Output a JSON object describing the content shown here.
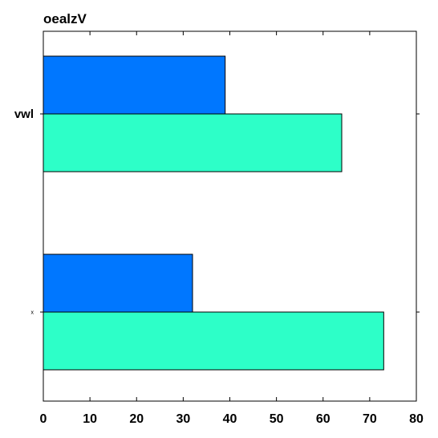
{
  "chart_data": {
    "type": "bar",
    "orientation": "horizontal",
    "title": "oealzV",
    "xlabel": "",
    "ylabel": "",
    "xlim": [
      0,
      80
    ],
    "xticks": [
      0,
      10,
      20,
      30,
      40,
      50,
      60,
      70,
      80
    ],
    "categories": [
      "vwl",
      "x"
    ],
    "series": [
      {
        "values": [
          39,
          32
        ],
        "color": "#0077ff"
      },
      {
        "values": [
          64,
          73
        ],
        "color": "#2dffc8"
      }
    ],
    "grid": false,
    "legend": "none"
  }
}
